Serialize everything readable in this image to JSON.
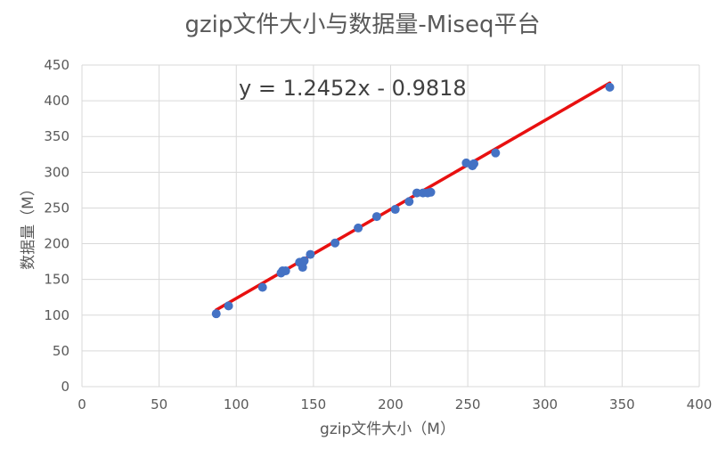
{
  "chart_data": {
    "type": "scatter",
    "title": "gzip文件大小与数据量-Miseq平台",
    "xlabel": "gzip文件大小（M）",
    "ylabel": "数据量（M）",
    "xlim": [
      0,
      400
    ],
    "ylim": [
      0,
      450
    ],
    "xticks": [
      0,
      50,
      100,
      150,
      200,
      250,
      300,
      350,
      400
    ],
    "yticks": [
      0,
      50,
      100,
      150,
      200,
      250,
      300,
      350,
      400,
      450
    ],
    "grid": true,
    "legend": "none",
    "series": [
      {
        "points": [
          [
            87,
            102
          ],
          [
            95,
            113
          ],
          [
            117,
            139
          ],
          [
            129,
            159
          ],
          [
            130,
            162
          ],
          [
            132,
            162
          ],
          [
            141,
            174
          ],
          [
            143,
            167
          ],
          [
            144,
            176
          ],
          [
            148,
            185
          ],
          [
            164,
            201
          ],
          [
            179,
            222
          ],
          [
            191,
            238
          ],
          [
            203,
            248
          ],
          [
            212,
            259
          ],
          [
            217,
            271
          ],
          [
            221,
            271
          ],
          [
            224,
            271
          ],
          [
            226,
            272
          ],
          [
            249,
            313
          ],
          [
            253,
            309
          ],
          [
            254,
            312
          ],
          [
            268,
            327
          ],
          [
            342,
            419
          ]
        ],
        "color": "#4472C4"
      }
    ],
    "trendline": {
      "slope": 1.2452,
      "intercept": -0.9818,
      "x_range": [
        87,
        342
      ],
      "color": "#E81010",
      "label": "y = 1.2452x - 0.9818"
    }
  }
}
